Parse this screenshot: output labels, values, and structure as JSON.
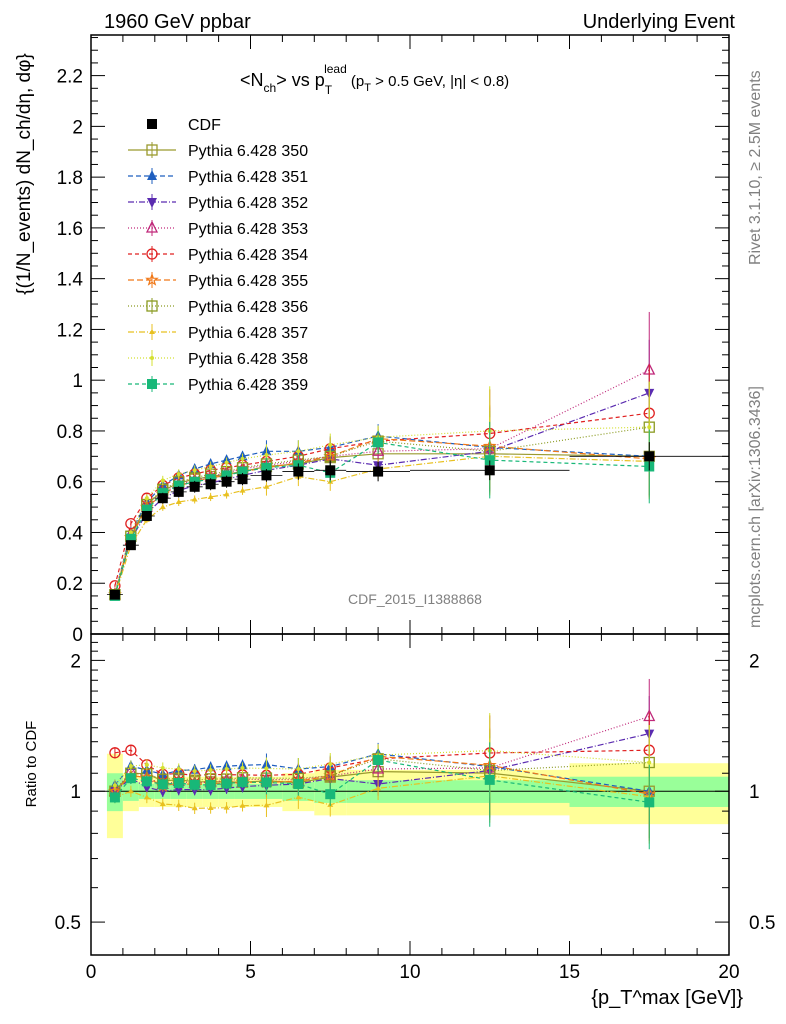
{
  "header": {
    "left": "1960 GeV ppbar",
    "right": "Underlying Event"
  },
  "side": {
    "rivet": "Rivet 3.1.10, ≥ 2.5M events",
    "mcplots": "mcplots.cern.ch [arXiv:1306.3436]"
  },
  "watermark": "CDF_2015_I1388868",
  "chart_data": {
    "type": "line",
    "title": {
      "prefix": "<N",
      "prefix_sub": "ch",
      "mid": "> vs p",
      "mid_sup": "lead",
      "mid_sub": "T",
      "tail_a": " (p",
      "tail_sub": "T",
      "tail_b": " > 0.5 GeV, |η| < 0.8)"
    },
    "ylabel": "{(1/N_events) dN_ch/dη, dφ}",
    "ratio_ylabel": "Ratio to CDF",
    "xlabel": "{p_T^max [GeV]}",
    "xlim": [
      0,
      20
    ],
    "ylim": [
      0,
      2.36
    ],
    "ratio_ylim": [
      0.42,
      2.3
    ],
    "xticks": [
      "0",
      "5",
      "10",
      "15",
      "20"
    ],
    "yticks": [
      "0",
      "0.2",
      "0.4",
      "0.6",
      "0.8",
      "1",
      "1.2",
      "1.4",
      "1.6",
      "1.8",
      "2",
      "2.2"
    ],
    "ratio_yticks": [
      "0.5",
      "1",
      "2"
    ],
    "x": [
      0.75,
      1.25,
      1.75,
      2.25,
      2.75,
      3.25,
      3.75,
      4.25,
      4.75,
      5.5,
      6.5,
      7.5,
      9.0,
      12.5,
      17.5
    ],
    "x_edges": [
      0.5,
      1.0,
      1.5,
      2.0,
      2.5,
      3.0,
      3.5,
      4.0,
      4.5,
      5.0,
      6.0,
      7.0,
      8.0,
      10.0,
      15.0,
      20.0
    ],
    "data": {
      "name": "CDF",
      "values": [
        0.155,
        0.35,
        0.465,
        0.535,
        0.56,
        0.58,
        0.59,
        0.6,
        0.61,
        0.625,
        0.64,
        0.645,
        0.64,
        0.645,
        0.7
      ],
      "band_inner": [
        0.1,
        0.05,
        0.04,
        0.04,
        0.04,
        0.04,
        0.04,
        0.04,
        0.04,
        0.04,
        0.05,
        0.06,
        0.06,
        0.06,
        0.08
      ],
      "band_outer": [
        0.22,
        0.1,
        0.08,
        0.08,
        0.08,
        0.08,
        0.08,
        0.08,
        0.08,
        0.08,
        0.1,
        0.12,
        0.12,
        0.12,
        0.16
      ]
    },
    "series": [
      {
        "name": "Pythia 6.428 350",
        "color": "#9a9a2e",
        "marker": "square-open",
        "dash": "solid",
        "values": [
          0.155,
          0.385,
          0.51,
          0.565,
          0.595,
          0.61,
          0.62,
          0.63,
          0.64,
          0.66,
          0.67,
          0.695,
          0.71,
          0.71,
          0.7
        ]
      },
      {
        "name": "Pythia 6.428 351",
        "color": "#1f5fbf",
        "marker": "triangle-up",
        "dash": "5,3",
        "values": [
          0.16,
          0.4,
          0.52,
          0.585,
          0.625,
          0.65,
          0.67,
          0.685,
          0.7,
          0.72,
          0.72,
          0.735,
          0.78,
          0.735,
          0.7
        ]
      },
      {
        "name": "Pythia 6.428 352",
        "color": "#5a2bb0",
        "marker": "triangle-down",
        "dash": "6,2,1,2",
        "values": [
          0.155,
          0.375,
          0.475,
          0.535,
          0.565,
          0.585,
          0.595,
          0.61,
          0.625,
          0.645,
          0.665,
          0.69,
          0.665,
          0.72,
          0.95
        ]
      },
      {
        "name": "Pythia 6.428 353",
        "color": "#c0287a",
        "marker": "triangle-up-open",
        "dash": "1,2",
        "values": [
          0.155,
          0.39,
          0.5,
          0.555,
          0.59,
          0.605,
          0.62,
          0.635,
          0.65,
          0.665,
          0.68,
          0.7,
          0.72,
          0.73,
          1.04
        ]
      },
      {
        "name": "Pythia 6.428 354",
        "color": "#e02020",
        "marker": "circle-open",
        "dash": "4,3",
        "values": [
          0.19,
          0.435,
          0.535,
          0.585,
          0.615,
          0.63,
          0.645,
          0.655,
          0.665,
          0.68,
          0.7,
          0.73,
          0.76,
          0.79,
          0.87
        ]
      },
      {
        "name": "Pythia 6.428 355",
        "color": "#f07818",
        "marker": "star-open",
        "dash": "6,3",
        "values": [
          0.155,
          0.38,
          0.5,
          0.55,
          0.585,
          0.6,
          0.615,
          0.625,
          0.64,
          0.655,
          0.675,
          0.7,
          0.77,
          0.74,
          0.69
        ]
      },
      {
        "name": "Pythia 6.428 356",
        "color": "#8a9a20",
        "marker": "square-open",
        "dash": "1,2",
        "values": [
          0.155,
          0.385,
          0.51,
          0.57,
          0.6,
          0.615,
          0.63,
          0.64,
          0.655,
          0.67,
          0.685,
          0.7,
          0.76,
          0.72,
          0.815
        ]
      },
      {
        "name": "Pythia 6.428 357",
        "color": "#e8c020",
        "marker": "tri-small",
        "dash": "6,2,1,2",
        "values": [
          0.15,
          0.35,
          0.45,
          0.5,
          0.52,
          0.53,
          0.54,
          0.55,
          0.565,
          0.58,
          0.62,
          0.6,
          0.65,
          0.7,
          0.68
        ]
      },
      {
        "name": "Pythia 6.428 358",
        "color": "#d4e030",
        "marker": "dot",
        "dash": "1,2",
        "values": [
          0.16,
          0.4,
          0.535,
          0.605,
          0.63,
          0.645,
          0.66,
          0.675,
          0.69,
          0.705,
          0.72,
          0.745,
          0.775,
          0.8,
          0.815
        ]
      },
      {
        "name": "Pythia 6.428 359",
        "color": "#18b878",
        "marker": "square",
        "dash": "4,3",
        "values": [
          0.15,
          0.375,
          0.49,
          0.555,
          0.585,
          0.6,
          0.61,
          0.625,
          0.64,
          0.655,
          0.665,
          0.635,
          0.755,
          0.685,
          0.66
        ]
      }
    ]
  }
}
